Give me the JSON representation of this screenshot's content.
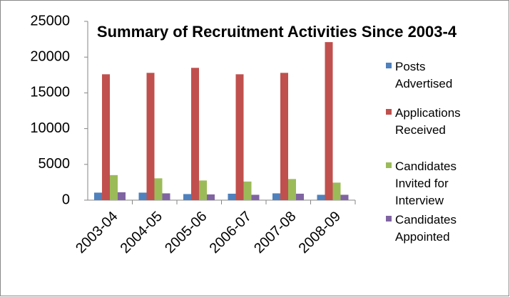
{
  "chart_data": {
    "type": "bar",
    "title": "Summary of Recruitment Activities Since 2003-4",
    "categories": [
      "2003-04",
      "2004-05",
      "2005-06",
      "2006-07",
      "2007-08",
      "2008-09"
    ],
    "series": [
      {
        "name": "Posts Advertised",
        "color": "#4f81bd",
        "values": [
          1050,
          1050,
          850,
          900,
          950,
          750
        ]
      },
      {
        "name": "Applications Received",
        "color": "#c0504d",
        "values": [
          17600,
          17800,
          18500,
          17600,
          17800,
          22100
        ]
      },
      {
        "name": "Candidates Invited for Interview",
        "color": "#9bbb59",
        "values": [
          3500,
          3050,
          2750,
          2600,
          2950,
          2450
        ]
      },
      {
        "name": "Candidates Appointed",
        "color": "#8064a2",
        "values": [
          1100,
          950,
          800,
          750,
          900,
          750
        ]
      }
    ],
    "ylim": [
      0,
      25000
    ],
    "yticks": [
      0,
      5000,
      10000,
      15000,
      20000,
      25000
    ],
    "grid": false,
    "legend": "right"
  }
}
